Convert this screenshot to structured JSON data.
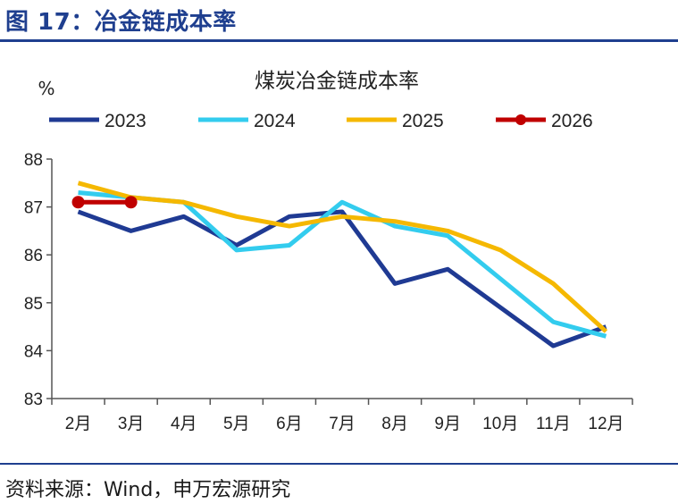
{
  "figure_title": "图 17：冶金链成本率",
  "source_note": "资料来源：Wind，申万宏源研究",
  "chart_data": {
    "type": "line",
    "title": "煤炭冶金链成本率",
    "ylabel": "%",
    "xlabel": "",
    "categories": [
      "2月",
      "3月",
      "4月",
      "5月",
      "6月",
      "7月",
      "8月",
      "9月",
      "10月",
      "11月",
      "12月"
    ],
    "ylim": [
      83,
      88
    ],
    "yticks": [
      83,
      84,
      85,
      86,
      87,
      88
    ],
    "grid": false,
    "legend_position": "top",
    "series": [
      {
        "name": "2023",
        "color": "#1f3a93",
        "marker": false,
        "values": [
          86.9,
          86.5,
          86.8,
          86.2,
          86.8,
          86.9,
          85.4,
          85.7,
          84.9,
          84.1,
          84.5
        ]
      },
      {
        "name": "2024",
        "color": "#33ccee",
        "marker": false,
        "values": [
          87.3,
          87.2,
          87.1,
          86.1,
          86.2,
          87.1,
          86.6,
          86.4,
          85.5,
          84.6,
          84.3
        ]
      },
      {
        "name": "2025",
        "color": "#f5b800",
        "marker": false,
        "values": [
          87.5,
          87.2,
          87.1,
          86.8,
          86.6,
          86.8,
          86.7,
          86.5,
          86.1,
          85.4,
          84.4
        ]
      },
      {
        "name": "2026",
        "color": "#c00000",
        "marker": true,
        "values": [
          87.1,
          87.1,
          null,
          null,
          null,
          null,
          null,
          null,
          null,
          null,
          null
        ]
      }
    ]
  }
}
